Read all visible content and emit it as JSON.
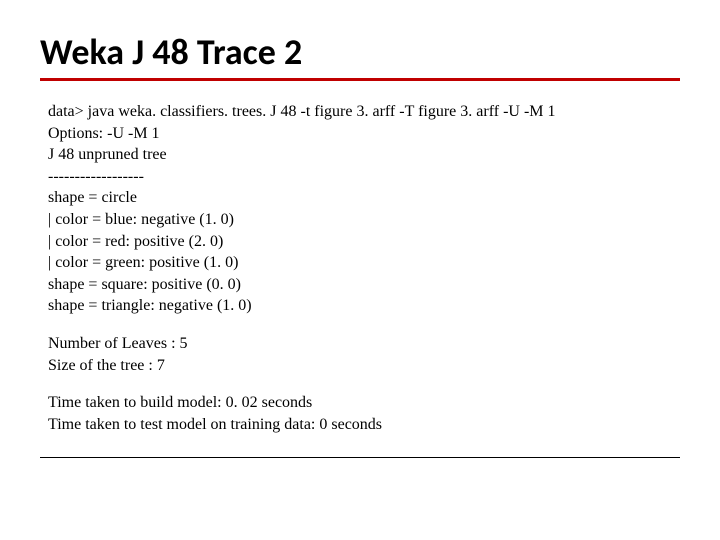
{
  "title": "Weka J 48 Trace 2",
  "lines": {
    "cmd": "data> java weka. classifiers. trees. J 48 -t figure 3. arff -T figure 3. arff -U -M 1",
    "opts": "Options: -U -M 1",
    "treeHeader": "J 48 unpruned tree",
    "divider": "------------------",
    "t1": "shape = circle",
    "t2": "|   color = blue: negative (1. 0)",
    "t3": "|   color = red: positive (2. 0)",
    "t4": "|   color = green: positive (1. 0)",
    "t5": "shape = square: positive (0. 0)",
    "t6": "shape = triangle: negative (1. 0)",
    "leaves": "Number of Leaves  :     5",
    "size": "Size of the tree :     7",
    "timeBuild": "Time taken to build model: 0. 02 seconds",
    "timeTest": "Time taken to test model on training data: 0 seconds"
  },
  "styling": {
    "title_fontsize": 36,
    "title_font": "Calibri",
    "title_weight": "bold",
    "body_fontsize": 16,
    "body_font": "Times New Roman",
    "underline_color": "#c00000",
    "underline_width": 3,
    "background_color": "#ffffff",
    "text_color": "#000000",
    "footer_line_color": "#000000"
  }
}
